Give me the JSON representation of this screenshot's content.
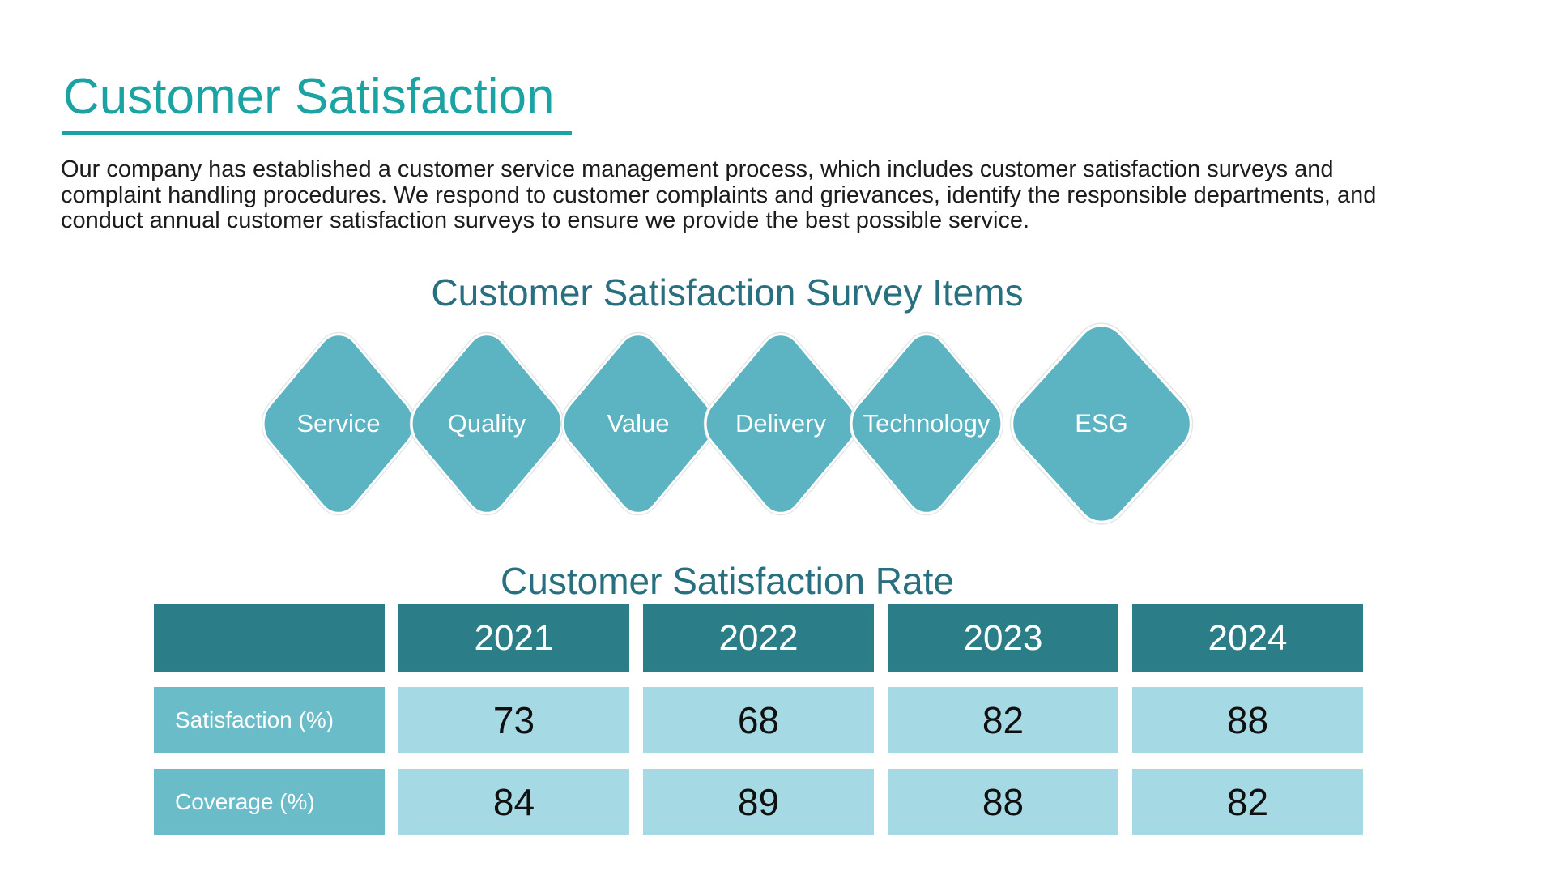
{
  "slide": {
    "title": "Customer Satisfaction",
    "intro_lines": [
      "Our company has established a customer service management process, which includes customer satisfaction surveys and",
      "complaint handling procedures. We respond to customer complaints and grievances, identify the responsible departments, and",
      "conduct annual customer satisfaction surveys to ensure we provide the best possible service."
    ]
  },
  "survey_items": {
    "heading": "Customer Satisfaction Survey Items",
    "items": [
      "Service",
      "Quality",
      "Value",
      "Delivery",
      "Technology",
      "ESG"
    ]
  },
  "satisfaction_rate": {
    "heading": "Customer Satisfaction Rate",
    "chart_data": {
      "type": "table",
      "columns": [
        "",
        "2021",
        "2022",
        "2023",
        "2024"
      ],
      "rows": [
        {
          "label": "Satisfaction (%)",
          "values": [
            73,
            68,
            82,
            88
          ]
        },
        {
          "label": "Coverage (%)",
          "values": [
            84,
            89,
            88,
            82
          ]
        }
      ]
    }
  },
  "colors": {
    "title_teal": "#1BA3A4",
    "heading_teal": "#28707F",
    "diamond_fill": "#5CB3C2",
    "table_header_bg": "#2B7E88",
    "row_label_bg": "#6BBCC9",
    "data_cell_bg": "#A5D9E4",
    "body_text": "#1C1C1C"
  }
}
